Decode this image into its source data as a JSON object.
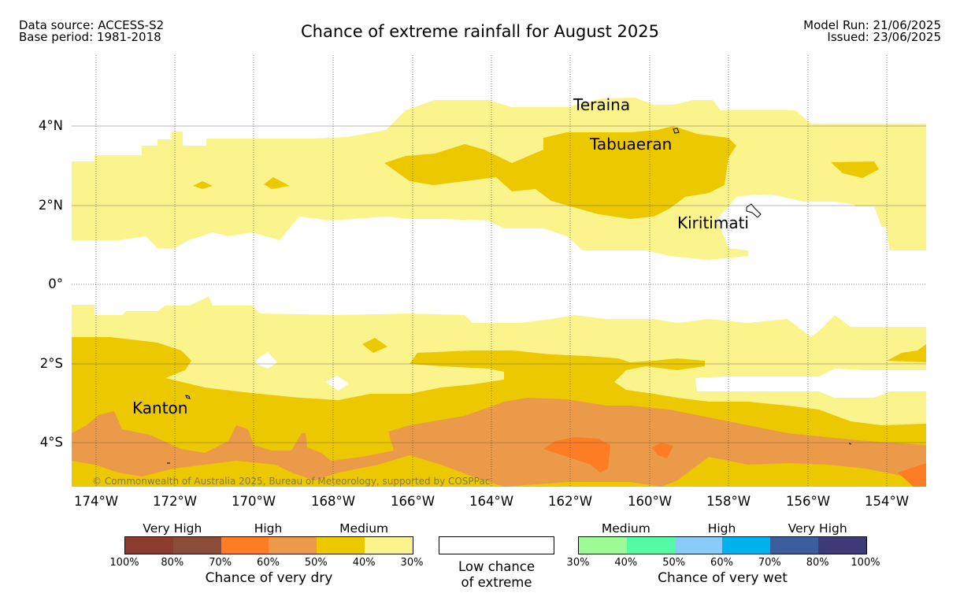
{
  "header": {
    "data_source": "Data source: ACCESS-S2",
    "base_period": "Base period: 1981-2018",
    "title": "Chance of extreme rainfall for August 2025",
    "model_run": "Model Run: 21/06/2025",
    "issued": "Issued: 23/06/2025"
  },
  "map": {
    "lon_labels": [
      "174°W",
      "172°W",
      "170°W",
      "168°W",
      "166°W",
      "164°W",
      "162°W",
      "160°W",
      "158°W",
      "156°W",
      "154°W"
    ],
    "lat_labels": [
      "4°N",
      "2°N",
      "0°",
      "2°S",
      "4°S"
    ],
    "places": {
      "teraina": "Teraina",
      "tabuaeran": "Tabuaeran",
      "kiritimati": "Kiritimati",
      "kanton": "Kanton"
    },
    "credit": "© Commonwealth of Australia 2025, Bureau of Meteorology, supported by COSPPac",
    "colors": {
      "dry_medium_low": "#fbf38c",
      "dry_medium_high": "#ebc800",
      "dry_high_low": "#ea9a48",
      "dry_high_high": "#fc7d24"
    }
  },
  "legend": {
    "dry": {
      "categories": [
        "Very High",
        "High",
        "Medium"
      ],
      "percent_labels": [
        "100%",
        "80%",
        "70%",
        "60%",
        "50%",
        "40%",
        "30%"
      ],
      "colors": [
        "#8c3b2f",
        "#8b4c39",
        "#fc7d24",
        "#ea9a48",
        "#ebc800",
        "#fbf38c"
      ],
      "title": "Chance of very dry"
    },
    "low": {
      "line1": "Low chance",
      "line2": "of extreme"
    },
    "wet": {
      "categories": [
        "Medium",
        "High",
        "Very High"
      ],
      "percent_labels": [
        "30%",
        "40%",
        "50%",
        "60%",
        "70%",
        "80%",
        "100%"
      ],
      "colors": [
        "#9dfb96",
        "#55fba4",
        "#88cbf8",
        "#00b2eb",
        "#3a5f9c",
        "#3e3a78"
      ],
      "title": "Chance of very wet"
    }
  }
}
